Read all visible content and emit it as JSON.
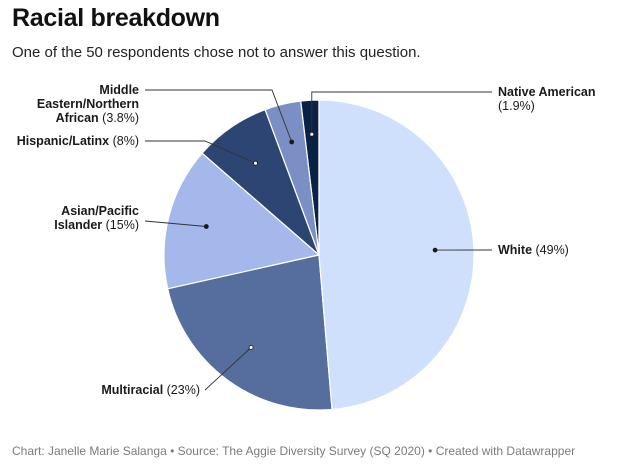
{
  "header": {
    "title": "Racial breakdown",
    "subtitle": "One of the 50 respondents chose not to answer this question."
  },
  "footer": {
    "credit": "Chart: Janelle Marie Salanga • Source: The Aggie Diversity Survey (SQ 2020) • Created with Datawrapper"
  },
  "colors": {
    "native_american": "#0b2247",
    "middle_eastern": "#7b8fc4",
    "hispanic": "#2c4573",
    "asian": "#a4b8ec",
    "multiracial": "#556e9d",
    "white": "#cfe0fc"
  },
  "chart_data": {
    "type": "pie",
    "slices": [
      {
        "id": "white",
        "name": "White",
        "pct_label": "(49%)",
        "value": 49
      },
      {
        "id": "multiracial",
        "name": "Multiracial",
        "pct_label": "(23%)",
        "value": 23
      },
      {
        "id": "asian",
        "name": "Asian/Pacific Islander",
        "pct_label": "(15%)",
        "value": 15
      },
      {
        "id": "hispanic",
        "name": "Hispanic/Latinx",
        "pct_label": "(8%)",
        "value": 8
      },
      {
        "id": "middle_eastern",
        "name": "Middle Eastern/Northern African",
        "pct_label": "(3.8%)",
        "value": 3.8
      },
      {
        "id": "native_american",
        "name": "Native American",
        "pct_label": "(1.9%)",
        "value": 1.9
      }
    ],
    "label_lines": {
      "white": [
        "White"
      ],
      "multiracial": [
        "Multiracial"
      ],
      "asian": [
        "Asian/Pacific",
        "Islander"
      ],
      "hispanic": [
        "Hispanic/Latinx"
      ],
      "middle_eastern": [
        "Middle",
        "Eastern/Northern",
        "African"
      ],
      "native_american": [
        "Native American"
      ]
    }
  }
}
